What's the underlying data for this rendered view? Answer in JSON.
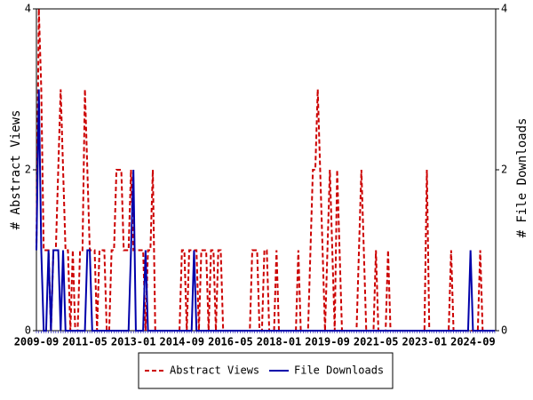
{
  "chart_data": {
    "type": "line",
    "x_label_every": 20,
    "x": [
      "2009-09",
      "2009-10",
      "2009-11",
      "2009-12",
      "2010-01",
      "2010-02",
      "2010-03",
      "2010-04",
      "2010-05",
      "2010-06",
      "2010-07",
      "2010-08",
      "2010-09",
      "2010-10",
      "2010-11",
      "2010-12",
      "2011-01",
      "2011-02",
      "2011-03",
      "2011-04",
      "2011-05",
      "2011-06",
      "2011-07",
      "2011-08",
      "2011-09",
      "2011-10",
      "2011-11",
      "2011-12",
      "2012-01",
      "2012-02",
      "2012-03",
      "2012-04",
      "2012-05",
      "2012-06",
      "2012-07",
      "2012-08",
      "2012-09",
      "2012-10",
      "2012-11",
      "2012-12",
      "2013-01",
      "2013-02",
      "2013-03",
      "2013-04",
      "2013-05",
      "2013-06",
      "2013-07",
      "2013-08",
      "2013-09",
      "2013-10",
      "2013-11",
      "2013-12",
      "2014-01",
      "2014-02",
      "2014-03",
      "2014-04",
      "2014-05",
      "2014-06",
      "2014-07",
      "2014-08",
      "2014-09",
      "2014-10",
      "2014-11",
      "2014-12",
      "2015-01",
      "2015-02",
      "2015-03",
      "2015-04",
      "2015-05",
      "2015-06",
      "2015-07",
      "2015-08",
      "2015-09",
      "2015-10",
      "2015-11",
      "2015-12",
      "2016-01",
      "2016-02",
      "2016-03",
      "2016-04",
      "2016-05",
      "2016-06",
      "2016-07",
      "2016-08",
      "2016-09",
      "2016-10",
      "2016-11",
      "2016-12",
      "2017-01",
      "2017-02",
      "2017-03",
      "2017-04",
      "2017-05",
      "2017-06",
      "2017-07",
      "2017-08",
      "2017-09",
      "2017-10",
      "2017-11",
      "2017-12",
      "2018-01",
      "2018-02",
      "2018-03",
      "2018-04",
      "2018-05",
      "2018-06",
      "2018-07",
      "2018-08",
      "2018-09",
      "2018-10",
      "2018-11",
      "2018-12",
      "2019-01",
      "2019-02",
      "2019-03",
      "2019-04",
      "2019-05",
      "2019-06",
      "2019-07",
      "2019-08",
      "2019-09",
      "2019-10",
      "2019-11",
      "2019-12",
      "2020-01",
      "2020-02",
      "2020-03",
      "2020-04",
      "2020-05",
      "2020-06",
      "2020-07",
      "2020-08",
      "2020-09",
      "2020-10",
      "2020-11",
      "2020-12",
      "2021-01",
      "2021-02",
      "2021-03",
      "2021-04",
      "2021-05",
      "2021-06",
      "2021-07",
      "2021-08",
      "2021-09",
      "2021-10",
      "2021-11",
      "2021-12",
      "2022-01",
      "2022-02",
      "2022-03",
      "2022-04",
      "2022-05",
      "2022-06",
      "2022-07",
      "2022-08",
      "2022-09",
      "2022-10",
      "2022-11",
      "2022-12",
      "2023-01",
      "2023-02",
      "2023-03",
      "2023-04",
      "2023-05",
      "2023-06",
      "2023-07",
      "2023-08",
      "2023-09",
      "2023-10",
      "2023-11",
      "2023-12",
      "2024-01",
      "2024-02",
      "2024-03",
      "2024-04",
      "2024-05",
      "2024-06",
      "2024-07",
      "2024-08",
      "2024-09",
      "2024-10",
      "2024-11",
      "2024-12",
      "2025-01",
      "2025-02",
      "2025-03",
      "2025-04",
      "2025-05",
      "2025-06"
    ],
    "series": [
      {
        "name": "Abstract Views",
        "color": "#cc0000",
        "dashed": true,
        "values": [
          1,
          4,
          3,
          1,
          1,
          1,
          0,
          1,
          1,
          2,
          3,
          2,
          1,
          1,
          0,
          1,
          0,
          0,
          1,
          1,
          3,
          2,
          1,
          1,
          1,
          0,
          1,
          1,
          1,
          0,
          0,
          1,
          1,
          2,
          2,
          2,
          1,
          1,
          1,
          2,
          1,
          1,
          1,
          1,
          1,
          0,
          1,
          1,
          2,
          0,
          0,
          0,
          0,
          0,
          0,
          0,
          0,
          0,
          0,
          0,
          1,
          1,
          0,
          1,
          1,
          1,
          1,
          0,
          1,
          1,
          1,
          0,
          1,
          1,
          0,
          1,
          1,
          0,
          0,
          0,
          0,
          0,
          0,
          0,
          0,
          0,
          0,
          0,
          0,
          1,
          1,
          1,
          0,
          0,
          1,
          1,
          0,
          0,
          0,
          1,
          0,
          0,
          0,
          0,
          0,
          0,
          0,
          0,
          1,
          0,
          0,
          0,
          0,
          1,
          2,
          2,
          3,
          2,
          1,
          0,
          1,
          2,
          1,
          0,
          2,
          1,
          0,
          0,
          0,
          0,
          0,
          0,
          0,
          1,
          2,
          1,
          0,
          0,
          0,
          0,
          1,
          0,
          0,
          0,
          0,
          1,
          0,
          0,
          0,
          0,
          0,
          0,
          0,
          0,
          0,
          0,
          0,
          0,
          0,
          0,
          0,
          2,
          0,
          0,
          0,
          0,
          0,
          0,
          0,
          0,
          0,
          1,
          0,
          0,
          0,
          0,
          0,
          0,
          0,
          0,
          0,
          0,
          0,
          1,
          0,
          0,
          0,
          0,
          0,
          0
        ]
      },
      {
        "name": "File Downloads",
        "color": "#0000aa",
        "dashed": false,
        "axis": "y2",
        "values": [
          1,
          3,
          1,
          0,
          0,
          1,
          0,
          1,
          1,
          1,
          0,
          1,
          0,
          0,
          0,
          0,
          0,
          0,
          0,
          0,
          0,
          1,
          1,
          0,
          0,
          0,
          0,
          0,
          0,
          0,
          0,
          0,
          0,
          0,
          0,
          0,
          0,
          0,
          0,
          1,
          2,
          0,
          0,
          0,
          0,
          1,
          0,
          0,
          0,
          0,
          0,
          0,
          0,
          0,
          0,
          0,
          0,
          0,
          0,
          0,
          0,
          0,
          0,
          0,
          0,
          1,
          0,
          0,
          0,
          0,
          0,
          0,
          0,
          0,
          0,
          0,
          0,
          0,
          0,
          0,
          0,
          0,
          0,
          0,
          0,
          0,
          0,
          0,
          0,
          0,
          0,
          0,
          0,
          0,
          0,
          0,
          0,
          0,
          0,
          0,
          0,
          0,
          0,
          0,
          0,
          0,
          0,
          0,
          0,
          0,
          0,
          0,
          0,
          0,
          0,
          0,
          0,
          0,
          0,
          0,
          0,
          0,
          0,
          0,
          0,
          0,
          0,
          0,
          0,
          0,
          0,
          0,
          0,
          0,
          0,
          0,
          0,
          0,
          0,
          0,
          0,
          0,
          0,
          0,
          0,
          0,
          0,
          0,
          0,
          0,
          0,
          0,
          0,
          0,
          0,
          0,
          0,
          0,
          0,
          0,
          0,
          0,
          0,
          0,
          0,
          0,
          0,
          0,
          0,
          0,
          0,
          0,
          0,
          0,
          0,
          0,
          0,
          0,
          0,
          1,
          0,
          0,
          0,
          0,
          0,
          0,
          0,
          0,
          0,
          0
        ]
      }
    ],
    "y_label": "# Abstract Views",
    "y2_label": "# File Downloads",
    "ylim": [
      0,
      4
    ],
    "yticks": [
      0,
      2,
      4
    ],
    "y2lim": [
      0,
      4
    ],
    "y2ticks": [
      0,
      2,
      4
    ],
    "legend": "bottom"
  }
}
